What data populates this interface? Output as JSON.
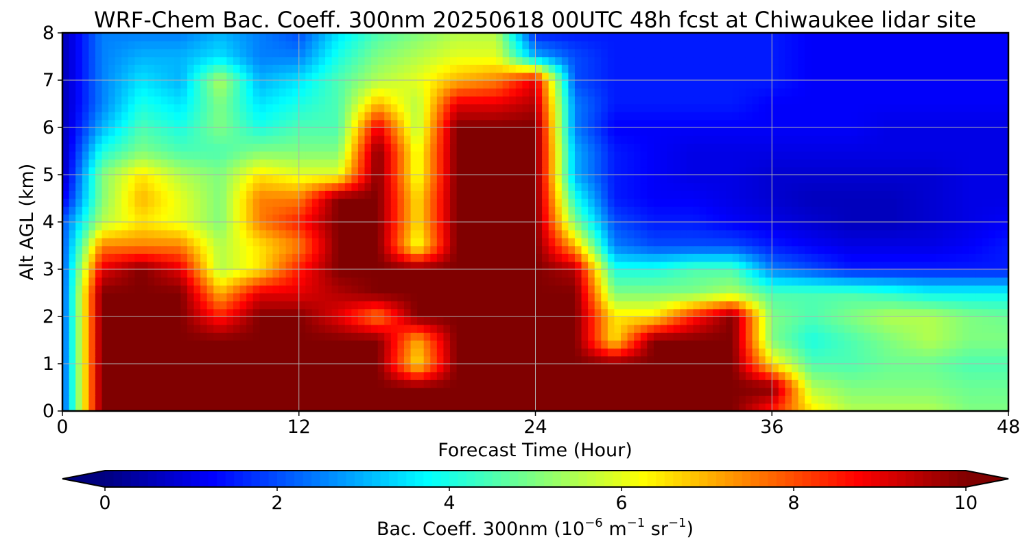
{
  "chart_data": {
    "type": "heatmap",
    "title": "WRF-Chem Bac. Coeff. 300nm  20250618 00UTC 48h fcst at Chiwaukee lidar site",
    "xlabel": "Forecast Time (Hour)",
    "ylabel": "Alt AGL (km)",
    "xlim": [
      0,
      48
    ],
    "ylim": [
      0,
      8
    ],
    "xticks": [
      0,
      12,
      24,
      36,
      48
    ],
    "yticks": [
      0,
      1,
      2,
      3,
      4,
      5,
      6,
      7,
      8
    ],
    "grid": true,
    "colormap": "jet",
    "colorbar": {
      "label_prefix": "Bac. Coeff. 300nm  (10",
      "label_exp1": "−6",
      "label_mid": " m",
      "label_exp2": "−1",
      "label_mid2": " sr",
      "label_exp3": "−1",
      "label_suffix": ")",
      "range": [
        0,
        10
      ],
      "ticks": [
        0,
        2,
        4,
        6,
        8,
        10
      ],
      "extend": "both",
      "orientation": "horizontal"
    },
    "x": [
      0,
      2,
      4,
      6,
      8,
      10,
      12,
      14,
      16,
      18,
      20,
      22,
      24,
      26,
      28,
      30,
      32,
      34,
      36,
      38,
      40,
      42,
      44,
      46,
      48
    ],
    "y": [
      0,
      0.5,
      1,
      1.5,
      2,
      2.5,
      3,
      3.5,
      4,
      4.5,
      5,
      5.5,
      6,
      6.5,
      7,
      7.5,
      8
    ],
    "z": [
      [
        2.0,
        10,
        10,
        10,
        10,
        10,
        10,
        10,
        10,
        10,
        10,
        10,
        10,
        10,
        10,
        10,
        10,
        10,
        8.5,
        6.5,
        5.5,
        5.5,
        5.5,
        5.0,
        5.0
      ],
      [
        2.0,
        10,
        10,
        10,
        10,
        10,
        10,
        10,
        10,
        10,
        10,
        10,
        10,
        10,
        10,
        10,
        10,
        10,
        10,
        5.5,
        5.0,
        5.0,
        5.0,
        4.8,
        4.8
      ],
      [
        2.0,
        10,
        10,
        10,
        10,
        10,
        10,
        10,
        10,
        6.5,
        10,
        10,
        10,
        10,
        10,
        10,
        10,
        10,
        6.5,
        4.5,
        4.5,
        4.8,
        4.8,
        4.5,
        4.5
      ],
      [
        2.0,
        10,
        10,
        10,
        10,
        10,
        10,
        10,
        10,
        7.0,
        10,
        10,
        10,
        10,
        6.5,
        10,
        10,
        10,
        5.0,
        4.0,
        4.5,
        5.0,
        5.5,
        5.0,
        5.0
      ],
      [
        2.0,
        10,
        10,
        10,
        8.5,
        10,
        10,
        9.0,
        7.5,
        10,
        10,
        10,
        10,
        10,
        6.5,
        6.5,
        8.5,
        10,
        5.0,
        4.5,
        5.0,
        5.5,
        5.5,
        5.0,
        4.8
      ],
      [
        2.0,
        10,
        10,
        10,
        7.0,
        9.0,
        9.0,
        9.5,
        10,
        10,
        10,
        10,
        10,
        10,
        5.0,
        5.0,
        5.0,
        5.5,
        4.5,
        4.5,
        4.5,
        4.2,
        3.8,
        3.8,
        3.8
      ],
      [
        2.0,
        9.0,
        10,
        9.0,
        5.5,
        6.5,
        8.5,
        10,
        10,
        10,
        10,
        10,
        10,
        9.5,
        4.0,
        4.0,
        4.5,
        4.5,
        2.5,
        2.0,
        1.5,
        1.5,
        1.5,
        1.5,
        1.5
      ],
      [
        2.0,
        7.5,
        7.5,
        7.5,
        5.5,
        6.5,
        7.5,
        10,
        10,
        6.0,
        10,
        10,
        10,
        7.0,
        2.5,
        2.0,
        2.0,
        2.0,
        1.5,
        1.2,
        1.0,
        1.0,
        1.0,
        1.2,
        1.5
      ],
      [
        2.0,
        5.5,
        6.5,
        6.0,
        5.0,
        7.5,
        8.5,
        10,
        10,
        6.5,
        10,
        10,
        10,
        5.0,
        2.0,
        1.5,
        1.5,
        1.2,
        1.0,
        0.8,
        0.6,
        0.6,
        0.8,
        1.0,
        1.2
      ],
      [
        1.0,
        5.0,
        7.0,
        6.0,
        5.0,
        7.5,
        7.5,
        10,
        10,
        6.5,
        10,
        10,
        10,
        4.0,
        1.5,
        1.2,
        1.2,
        1.0,
        0.8,
        0.6,
        0.6,
        0.6,
        0.8,
        1.0,
        1.0
      ],
      [
        0.5,
        5.0,
        6.5,
        5.5,
        5.0,
        6.5,
        6.0,
        6.0,
        10,
        6.0,
        10,
        10,
        10,
        3.0,
        1.5,
        1.2,
        1.0,
        1.0,
        0.8,
        0.8,
        0.8,
        0.8,
        0.8,
        1.0,
        1.0
      ],
      [
        0.5,
        4.0,
        5.0,
        4.5,
        4.5,
        5.0,
        5.0,
        5.0,
        10,
        6.0,
        10,
        10,
        10,
        3.0,
        1.5,
        1.2,
        1.0,
        1.0,
        1.0,
        1.0,
        1.0,
        1.0,
        1.0,
        1.0,
        1.0
      ],
      [
        0.5,
        3.0,
        4.5,
        4.0,
        5.0,
        4.0,
        4.5,
        4.5,
        9.0,
        5.5,
        10,
        10,
        10,
        2.5,
        1.2,
        1.2,
        1.2,
        1.2,
        1.2,
        1.2,
        1.2,
        1.0,
        1.0,
        1.0,
        1.0
      ],
      [
        0.5,
        2.5,
        4.0,
        3.5,
        5.0,
        3.5,
        4.0,
        4.5,
        7.0,
        5.5,
        9.0,
        9.0,
        9.5,
        2.5,
        1.5,
        1.5,
        1.5,
        1.5,
        1.2,
        1.2,
        1.2,
        1.2,
        1.2,
        1.2,
        1.2
      ],
      [
        0.5,
        2.5,
        3.5,
        3.0,
        5.5,
        3.0,
        3.5,
        4.5,
        5.5,
        6.0,
        7.0,
        7.5,
        9.0,
        2.0,
        1.5,
        1.5,
        1.5,
        1.5,
        1.5,
        1.2,
        1.2,
        1.2,
        1.2,
        1.2,
        1.2
      ],
      [
        0.5,
        2.5,
        3.0,
        3.0,
        3.5,
        2.5,
        2.5,
        4.0,
        5.0,
        5.5,
        6.0,
        6.0,
        3.0,
        2.0,
        1.5,
        1.5,
        1.5,
        1.5,
        1.5,
        1.2,
        1.2,
        1.2,
        1.2,
        1.2,
        1.2
      ],
      [
        0.5,
        2.5,
        2.5,
        2.5,
        3.0,
        2.5,
        2.0,
        3.5,
        4.5,
        5.0,
        5.5,
        5.5,
        1.5,
        1.5,
        1.5,
        1.5,
        1.5,
        1.5,
        1.5,
        1.2,
        1.2,
        1.2,
        1.2,
        1.2,
        1.2
      ]
    ]
  }
}
